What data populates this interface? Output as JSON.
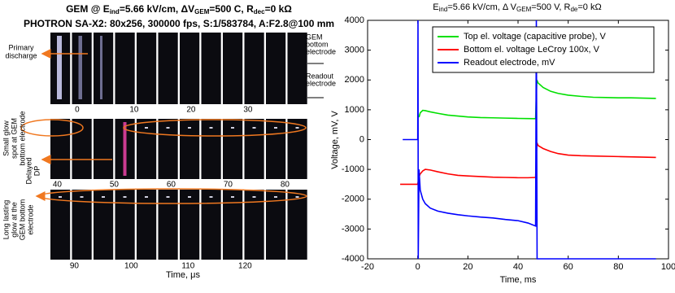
{
  "figure": {
    "title": [
      "GEM @ E",
      "ind",
      "=5.66 kV/cm, ΔV",
      "GEM",
      "=500 C, R",
      "dec",
      "=0 kΩ"
    ],
    "subtitle": "PHOTRON SA-X2: 80x256, 300000 fps, S:1/583784, A:F2.8@100 mm",
    "rows": [
      {
        "labels": [
          0,
          10,
          20,
          30
        ]
      },
      {
        "labels": [
          40,
          50,
          60,
          70,
          80
        ]
      },
      {
        "labels": [
          90,
          100,
          110,
          120
        ]
      }
    ],
    "xlabel": "Time, μs",
    "annotations": {
      "primary": [
        "Primary",
        "discharge"
      ],
      "gem_bottom": [
        "GEM",
        "bottom",
        "electrode"
      ],
      "readout": [
        "Readout",
        "electrode"
      ],
      "small_glow": [
        "Small glow",
        "spot at GEM",
        "bottom electrode"
      ],
      "delayed": [
        "Delayed",
        "DP"
      ],
      "long_glow": [
        "Long lasting",
        "glow at the",
        "GEM bottom",
        "electrode"
      ]
    }
  },
  "chart_data": {
    "type": "line",
    "title": [
      "E",
      "ind",
      "=5.66 kV/cm,  Δ V",
      "GEM",
      "=500 V, R",
      "de",
      "=0 kΩ"
    ],
    "xlabel": "Time, ms",
    "ylabel": "Voltage, mV, V",
    "xlim": [
      -20,
      100
    ],
    "xticks": [
      -20,
      0,
      20,
      40,
      60,
      80,
      100
    ],
    "ylim": [
      -4000,
      4000
    ],
    "yticks": [
      -4000,
      -3000,
      -2000,
      -1000,
      0,
      1000,
      2000,
      3000,
      4000
    ],
    "grid": false,
    "legend": "upper-right",
    "series": [
      {
        "name": "Top el. voltage (capacitive probe), V",
        "color": "#00e000",
        "x": [
          0.5,
          1,
          2,
          3,
          5,
          8,
          12,
          16,
          20,
          25,
          30,
          35,
          40,
          44,
          47,
          47.5,
          48,
          50,
          53,
          56,
          60,
          65,
          70,
          75,
          80,
          85,
          90,
          95
        ],
        "values": [
          750,
          900,
          980,
          970,
          930,
          880,
          820,
          790,
          760,
          740,
          730,
          720,
          710,
          705,
          700,
          2000,
          1900,
          1750,
          1620,
          1550,
          1490,
          1450,
          1420,
          1410,
          1400,
          1400,
          1390,
          1380
        ]
      },
      {
        "name": "Bottom el. voltage LeCroy 100x, V",
        "color": "#ff0000",
        "x": [
          -7,
          -4,
          -1,
          0,
          0.5,
          1,
          2,
          3,
          5,
          8,
          12,
          16,
          20,
          25,
          30,
          35,
          40,
          44,
          47,
          47.5,
          48,
          50,
          53,
          56,
          60,
          65,
          70,
          80,
          90,
          95
        ],
        "values": [
          -1500,
          -1500,
          -1500,
          -1500,
          -1250,
          -1150,
          -1050,
          -1000,
          -1020,
          -1080,
          -1150,
          -1200,
          -1220,
          -1240,
          -1260,
          -1270,
          -1280,
          -1280,
          -1270,
          -100,
          -200,
          -300,
          -400,
          -470,
          -520,
          -540,
          -550,
          -570,
          -590,
          -600
        ]
      },
      {
        "name": "Readout electrode, mV",
        "color": "#0000ff",
        "x": [
          -6,
          -4,
          -2,
          -0.5,
          0,
          0.1,
          0.2,
          0.5,
          1,
          2,
          3,
          5,
          8,
          12,
          16,
          20,
          25,
          30,
          35,
          40,
          44,
          47,
          47.3,
          47.6,
          50,
          60,
          70,
          80,
          90,
          95
        ],
        "values": [
          0,
          0,
          0,
          0,
          0,
          4000,
          -4000,
          -1000,
          -1700,
          -2000,
          -2150,
          -2300,
          -2400,
          -2470,
          -2520,
          -2560,
          -2600,
          -2630,
          -2680,
          -2720,
          -2800,
          -2900,
          4000,
          -4000,
          -4000,
          -4000,
          -4000,
          -4000,
          -4000,
          -4000
        ]
      }
    ]
  }
}
